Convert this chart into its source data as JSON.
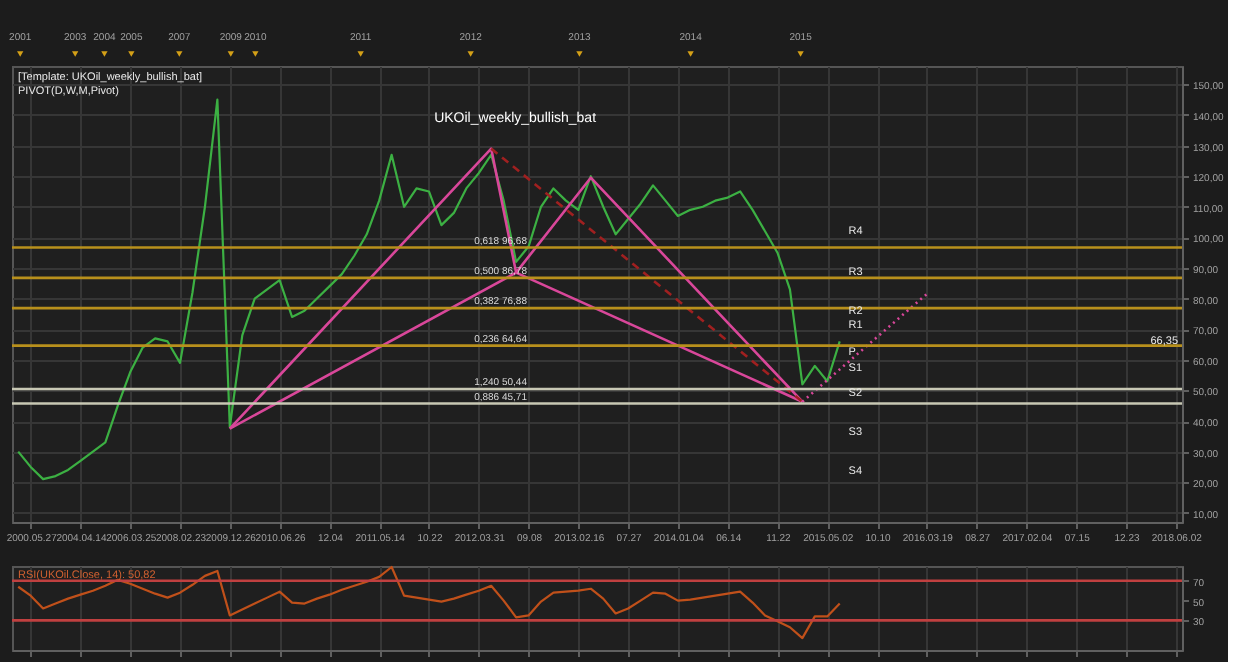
{
  "chart_data": [
    {
      "type": "line",
      "title": "UKOil_weekly_bullish_bat",
      "annotations": [
        "[Template: UKOil_weekly_bullish_bat]",
        "PIVOT(D,W,M,Pivot)",
        "R4",
        "R3",
        "R2",
        "R1",
        "P",
        "S1",
        "S2",
        "S3",
        "S4",
        "66,35",
        "2001",
        "2003",
        "2004",
        "2005",
        "2007",
        "2009",
        "2010",
        "2011",
        "2012",
        "2013",
        "2014",
        "2015"
      ],
      "categories": [
        null,
        "2000.05.27",
        null,
        null,
        null,
        "2004.04.14",
        null,
        null,
        null,
        "2006.03.25",
        null,
        null,
        null,
        "2008.02.23",
        null,
        null,
        null,
        "2009.12.26",
        null,
        null,
        null,
        "2010.06.26",
        null,
        null,
        null,
        "12.04",
        null,
        null,
        null,
        "2011.05.14",
        null,
        null,
        null,
        "10.22",
        null,
        null,
        null,
        "2012.03.31",
        null,
        null,
        null,
        "09.08",
        null,
        null,
        null,
        "2013.02.16",
        null,
        null,
        null,
        "07.27",
        null,
        null,
        null,
        "2014.01.04",
        null,
        null,
        null,
        "06.14",
        null,
        null,
        null,
        "11.22",
        null,
        null,
        null,
        "2015.05.02",
        null,
        null,
        null,
        "10.10",
        null,
        null,
        null,
        "2016.03.19",
        null,
        null,
        null,
        "08.27",
        null,
        null,
        null,
        "2017.02.04",
        null,
        null,
        null,
        "07.15",
        null,
        null,
        null,
        "12.23",
        null,
        null,
        null,
        "2018.06.02"
      ],
      "ylim": [
        7,
        156
      ],
      "yticks": [
        {
          "value": 10,
          "label": "10,00"
        },
        {
          "value": 20,
          "label": "20,00"
        },
        {
          "value": 30,
          "label": "30,00"
        },
        {
          "value": 40,
          "label": "40,00"
        },
        {
          "value": 50,
          "label": "50,00"
        },
        {
          "value": 60,
          "label": "60,00"
        },
        {
          "value": 70,
          "label": "70,00"
        },
        {
          "value": 80,
          "label": "80,00"
        },
        {
          "value": 90,
          "label": "90,00"
        },
        {
          "value": 100,
          "label": "100,00"
        },
        {
          "value": 110,
          "label": "110,00"
        },
        {
          "value": 120,
          "label": "120,00"
        },
        {
          "value": 130,
          "label": "130,00"
        },
        {
          "value": 140,
          "label": "140,00"
        },
        {
          "value": 150,
          "label": "150,00"
        }
      ],
      "series": [
        {
          "color": "#3cb043",
          "values": [
            30,
            25,
            21,
            22,
            24,
            27,
            30,
            33,
            45,
            56,
            64,
            67,
            66,
            59,
            82,
            110,
            145,
            38,
            68,
            80,
            83,
            86,
            74,
            76,
            80,
            84,
            88,
            94,
            101,
            112,
            127,
            110,
            116,
            115,
            104,
            108,
            116,
            121,
            127,
            112,
            92,
            97,
            110,
            116,
            112,
            109,
            120,
            110,
            101,
            106,
            111,
            117,
            112,
            107,
            109,
            110,
            112,
            113,
            115,
            109,
            102,
            95,
            83,
            52,
            58,
            53,
            66,
            null,
            null,
            null,
            null,
            null,
            null,
            null,
            null,
            null,
            null,
            null,
            null,
            null,
            null,
            null,
            null,
            null,
            null,
            null,
            null,
            null,
            null,
            null,
            null,
            null,
            null,
            null
          ]
        },
        {
          "color": "#d9479a",
          "values": [
            null,
            null,
            null,
            null,
            null,
            null,
            null,
            null,
            null,
            null,
            null,
            null,
            null,
            null,
            null,
            null,
            null,
            37.5,
            null,
            null,
            null,
            null,
            null,
            null,
            null,
            null,
            null,
            null,
            null,
            null,
            null,
            null,
            null,
            null,
            null,
            null,
            null,
            null,
            129,
            null,
            88.5,
            null,
            null,
            null,
            null,
            null,
            119.5,
            null,
            null,
            null,
            null,
            null,
            null,
            null,
            null,
            null,
            null,
            null,
            null,
            null,
            null,
            null,
            null,
            46.3,
            null,
            null,
            null,
            null,
            null,
            null,
            null,
            null,
            null,
            null,
            null,
            null,
            null,
            null,
            null,
            null,
            null,
            null,
            null,
            null,
            null,
            null,
            null,
            null,
            null,
            null,
            null,
            null,
            null,
            null
          ]
        },
        {
          "color": "#d9479a",
          "values": [
            null,
            null,
            null,
            null,
            null,
            null,
            null,
            null,
            null,
            null,
            null,
            null,
            null,
            null,
            null,
            null,
            null,
            37.5,
            null,
            null,
            null,
            null,
            null,
            null,
            null,
            null,
            null,
            null,
            null,
            null,
            null,
            null,
            null,
            null,
            null,
            null,
            null,
            null,
            null,
            null,
            88.5,
            null,
            null,
            null,
            null,
            null,
            null,
            null,
            null,
            null,
            null,
            null,
            null,
            null,
            null,
            null,
            null,
            null,
            null,
            null,
            null,
            null,
            null,
            46.3,
            null,
            null,
            null,
            null,
            null,
            null,
            null,
            null,
            null,
            null,
            null,
            null,
            null,
            null,
            null,
            null,
            null,
            null,
            null,
            null,
            null,
            null,
            null,
            null,
            null,
            null,
            null,
            null,
            null,
            null
          ]
        },
        {
          "color": "#a02020",
          "line_style": "dashed",
          "values": [
            null,
            null,
            null,
            null,
            null,
            null,
            null,
            null,
            null,
            null,
            null,
            null,
            null,
            null,
            null,
            null,
            null,
            null,
            null,
            null,
            null,
            null,
            null,
            null,
            null,
            null,
            null,
            null,
            null,
            null,
            null,
            null,
            null,
            null,
            null,
            null,
            null,
            null,
            129,
            null,
            null,
            null,
            null,
            null,
            null,
            null,
            null,
            null,
            null,
            null,
            null,
            null,
            null,
            null,
            null,
            null,
            null,
            null,
            null,
            null,
            null,
            null,
            null,
            46.3,
            null,
            null,
            null,
            null,
            null,
            null,
            null,
            null,
            null,
            null,
            null,
            null,
            null,
            null,
            null,
            null,
            null,
            null,
            null,
            null,
            null,
            null,
            null,
            null,
            null,
            null,
            null,
            null,
            null,
            null
          ]
        },
        {
          "color": "#d9479a",
          "line_style": "dotted",
          "values": [
            null,
            null,
            null,
            null,
            null,
            null,
            null,
            null,
            null,
            null,
            null,
            null,
            null,
            null,
            null,
            null,
            null,
            null,
            null,
            null,
            null,
            null,
            null,
            null,
            null,
            null,
            null,
            null,
            null,
            null,
            null,
            null,
            null,
            null,
            null,
            null,
            null,
            null,
            null,
            null,
            null,
            null,
            null,
            null,
            null,
            null,
            null,
            null,
            null,
            null,
            null,
            null,
            null,
            null,
            null,
            null,
            null,
            null,
            null,
            null,
            null,
            null,
            null,
            46.3,
            null,
            null,
            null,
            null,
            null,
            null,
            null,
            null,
            null,
            81.5,
            null,
            null,
            null,
            null,
            null,
            null,
            null,
            null,
            null,
            null,
            null,
            null,
            null,
            null,
            null,
            null,
            null,
            null,
            null,
            null
          ]
        }
      ],
      "ref_lines": [
        {
          "axis": "y",
          "value": 96.68,
          "label": "0,618 96,68",
          "color": "#b8901c"
        },
        {
          "axis": "y",
          "value": 86.78,
          "label": "0,500 86,78",
          "color": "#b8901c"
        },
        {
          "axis": "y",
          "value": 76.88,
          "label": "0,382 76,88",
          "color": "#b8901c"
        },
        {
          "axis": "y",
          "value": 64.64,
          "label": "0,236 64,64",
          "color": "#b8901c"
        },
        {
          "axis": "y",
          "value": 50.44,
          "label": "1,240 50,44",
          "color": "#c8c8b4"
        },
        {
          "axis": "y",
          "value": 45.71,
          "label": "0,886 45,71",
          "color": "#c8c8b4"
        }
      ],
      "grid": true,
      "marker": "none",
      "line_style": "solid"
    },
    {
      "type": "line",
      "title": "RSI(UKOil.Close, 14): 50,82",
      "categories": [
        null,
        null,
        null,
        null,
        null,
        null,
        null,
        null,
        null,
        null,
        null,
        null,
        null,
        null,
        null,
        null,
        null,
        null,
        null,
        null,
        null,
        null,
        null,
        null,
        null,
        null,
        null,
        null,
        null,
        null,
        null,
        null,
        null,
        null,
        null,
        null,
        null,
        null,
        null,
        null,
        null,
        null,
        null,
        null,
        null,
        null,
        null,
        null,
        null,
        null,
        null,
        null,
        null,
        null,
        null,
        null,
        null,
        null,
        null,
        null,
        null,
        null,
        null,
        null,
        null,
        null,
        null,
        null,
        null,
        null,
        null,
        null,
        null,
        null,
        null,
        null,
        null,
        null,
        null,
        null,
        null,
        null,
        null,
        null,
        null,
        null,
        null,
        null,
        null,
        null,
        null,
        null,
        null,
        null
      ],
      "ylim": [
        0,
        85
      ],
      "yticks": [
        30,
        50,
        70
      ],
      "tick_labels": "y",
      "series": [
        {
          "color": "#c0501a",
          "values": [
            64,
            55,
            42,
            47,
            52,
            56,
            60,
            65,
            71,
            67,
            62,
            57,
            53,
            58,
            66,
            75,
            80,
            35,
            41,
            47,
            53,
            59,
            48,
            47,
            52,
            56,
            61,
            65,
            69,
            74,
            84,
            55,
            53,
            51,
            49,
            52,
            56,
            60,
            65,
            50,
            33,
            35,
            49,
            58,
            59,
            60,
            62,
            52,
            37,
            42,
            50,
            58,
            57,
            50,
            51,
            53,
            55,
            57,
            59,
            48,
            35,
            29,
            23,
            12,
            34,
            34,
            47,
            null,
            null,
            null,
            null,
            null,
            null,
            null,
            null,
            null,
            null,
            null,
            null,
            null,
            null,
            null,
            null,
            null,
            null,
            null,
            null,
            null,
            null,
            null,
            null,
            null,
            null,
            null
          ]
        }
      ],
      "ref_lines": [
        {
          "axis": "y",
          "value": 70,
          "color": "#c04040"
        },
        {
          "axis": "y",
          "value": 30,
          "color": "#c04040"
        }
      ],
      "grid": "x",
      "marker": "none",
      "line_style": "solid"
    }
  ]
}
